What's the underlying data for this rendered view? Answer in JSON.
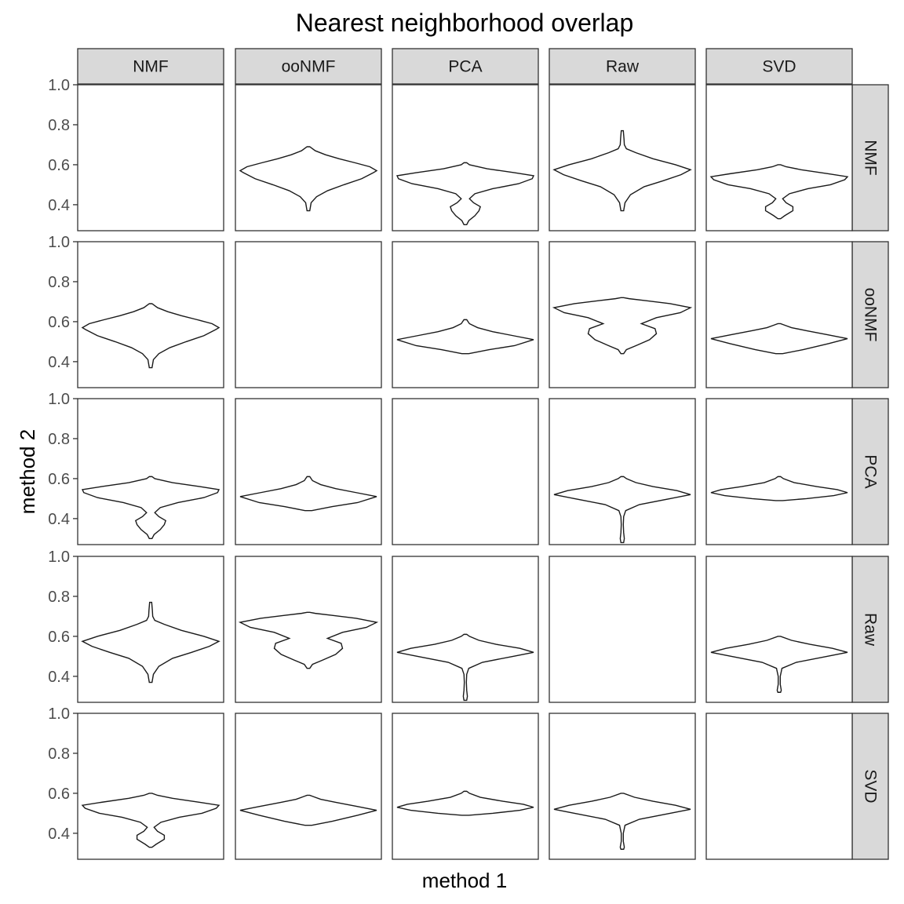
{
  "chart_data": {
    "type": "violin",
    "title": "Nearest neighborhood overlap",
    "xlabel": "method 1",
    "ylabel": "method 2",
    "facet_columns": [
      "NMF",
      "ooNMF",
      "PCA",
      "Raw",
      "SVD"
    ],
    "facet_rows": [
      "NMF",
      "ooNMF",
      "PCA",
      "Raw",
      "SVD"
    ],
    "ylim": [
      0.27,
      1.0
    ],
    "yticks": [
      0.4,
      0.6,
      0.8,
      1.0
    ],
    "ytick_labels": [
      "0.4",
      "0.6",
      "0.8",
      "1.0"
    ],
    "grid": false,
    "panels": [
      {
        "row": "NMF",
        "col": "ooNMF",
        "y_min": 0.37,
        "y_max": 0.69,
        "density": [
          [
            0.37,
            0.02
          ],
          [
            0.41,
            0.04
          ],
          [
            0.44,
            0.12
          ],
          [
            0.47,
            0.28
          ],
          [
            0.5,
            0.52
          ],
          [
            0.53,
            0.78
          ],
          [
            0.56,
            0.95
          ],
          [
            0.57,
            1.0
          ],
          [
            0.59,
            0.9
          ],
          [
            0.61,
            0.68
          ],
          [
            0.63,
            0.45
          ],
          [
            0.65,
            0.25
          ],
          [
            0.67,
            0.1
          ],
          [
            0.69,
            0.02
          ]
        ]
      },
      {
        "row": "NMF",
        "col": "PCA",
        "y_min": 0.3,
        "y_max": 0.61,
        "density": [
          [
            0.3,
            0.02
          ],
          [
            0.32,
            0.05
          ],
          [
            0.345,
            0.14
          ],
          [
            0.37,
            0.2
          ],
          [
            0.39,
            0.22
          ],
          [
            0.41,
            0.12
          ],
          [
            0.43,
            0.06
          ],
          [
            0.455,
            0.14
          ],
          [
            0.48,
            0.4
          ],
          [
            0.505,
            0.78
          ],
          [
            0.53,
            0.98
          ],
          [
            0.545,
            1.0
          ],
          [
            0.56,
            0.72
          ],
          [
            0.58,
            0.32
          ],
          [
            0.6,
            0.06
          ],
          [
            0.61,
            0.02
          ]
        ]
      },
      {
        "row": "NMF",
        "col": "Raw",
        "y_min": 0.37,
        "y_max": 0.77,
        "density": [
          [
            0.37,
            0.02
          ],
          [
            0.41,
            0.04
          ],
          [
            0.45,
            0.12
          ],
          [
            0.49,
            0.32
          ],
          [
            0.52,
            0.6
          ],
          [
            0.55,
            0.86
          ],
          [
            0.575,
            1.0
          ],
          [
            0.6,
            0.78
          ],
          [
            0.63,
            0.45
          ],
          [
            0.66,
            0.2
          ],
          [
            0.68,
            0.06
          ],
          [
            0.7,
            0.03
          ],
          [
            0.73,
            0.025
          ],
          [
            0.77,
            0.015
          ]
        ]
      },
      {
        "row": "NMF",
        "col": "SVD",
        "y_min": 0.33,
        "y_max": 0.6,
        "density": [
          [
            0.33,
            0.02
          ],
          [
            0.345,
            0.08
          ],
          [
            0.37,
            0.2
          ],
          [
            0.39,
            0.2
          ],
          [
            0.41,
            0.1
          ],
          [
            0.43,
            0.05
          ],
          [
            0.455,
            0.15
          ],
          [
            0.48,
            0.42
          ],
          [
            0.5,
            0.75
          ],
          [
            0.525,
            0.96
          ],
          [
            0.54,
            1.0
          ],
          [
            0.555,
            0.72
          ],
          [
            0.575,
            0.32
          ],
          [
            0.59,
            0.1
          ],
          [
            0.6,
            0.02
          ]
        ]
      },
      {
        "row": "ooNMF",
        "col": "NMF",
        "y_min": 0.37,
        "y_max": 0.69,
        "density": [
          [
            0.37,
            0.02
          ],
          [
            0.41,
            0.04
          ],
          [
            0.44,
            0.12
          ],
          [
            0.47,
            0.28
          ],
          [
            0.5,
            0.52
          ],
          [
            0.53,
            0.78
          ],
          [
            0.56,
            0.95
          ],
          [
            0.57,
            1.0
          ],
          [
            0.59,
            0.9
          ],
          [
            0.61,
            0.68
          ],
          [
            0.63,
            0.45
          ],
          [
            0.65,
            0.25
          ],
          [
            0.67,
            0.1
          ],
          [
            0.69,
            0.02
          ]
        ]
      },
      {
        "row": "ooNMF",
        "col": "PCA",
        "y_min": 0.44,
        "y_max": 0.61,
        "density": [
          [
            0.44,
            0.05
          ],
          [
            0.46,
            0.35
          ],
          [
            0.48,
            0.72
          ],
          [
            0.51,
            1.0
          ],
          [
            0.53,
            0.7
          ],
          [
            0.55,
            0.4
          ],
          [
            0.57,
            0.18
          ],
          [
            0.59,
            0.06
          ],
          [
            0.61,
            0.02
          ]
        ]
      },
      {
        "row": "ooNMF",
        "col": "Raw",
        "y_min": 0.44,
        "y_max": 0.72,
        "density": [
          [
            0.44,
            0.02
          ],
          [
            0.46,
            0.06
          ],
          [
            0.48,
            0.2
          ],
          [
            0.51,
            0.4
          ],
          [
            0.54,
            0.5
          ],
          [
            0.565,
            0.48
          ],
          [
            0.59,
            0.28
          ],
          [
            0.62,
            0.5
          ],
          [
            0.645,
            0.85
          ],
          [
            0.67,
            1.0
          ],
          [
            0.69,
            0.7
          ],
          [
            0.705,
            0.35
          ],
          [
            0.715,
            0.1
          ],
          [
            0.72,
            0.02
          ]
        ]
      },
      {
        "row": "ooNMF",
        "col": "SVD",
        "y_min": 0.44,
        "y_max": 0.59,
        "density": [
          [
            0.44,
            0.05
          ],
          [
            0.46,
            0.35
          ],
          [
            0.49,
            0.72
          ],
          [
            0.515,
            1.0
          ],
          [
            0.535,
            0.7
          ],
          [
            0.555,
            0.4
          ],
          [
            0.57,
            0.18
          ],
          [
            0.585,
            0.06
          ],
          [
            0.59,
            0.02
          ]
        ]
      },
      {
        "row": "PCA",
        "col": "NMF",
        "y_min": 0.3,
        "y_max": 0.61,
        "density": [
          [
            0.3,
            0.02
          ],
          [
            0.32,
            0.05
          ],
          [
            0.345,
            0.14
          ],
          [
            0.37,
            0.2
          ],
          [
            0.39,
            0.22
          ],
          [
            0.41,
            0.12
          ],
          [
            0.43,
            0.06
          ],
          [
            0.455,
            0.14
          ],
          [
            0.48,
            0.4
          ],
          [
            0.505,
            0.78
          ],
          [
            0.53,
            0.98
          ],
          [
            0.545,
            1.0
          ],
          [
            0.56,
            0.72
          ],
          [
            0.58,
            0.32
          ],
          [
            0.6,
            0.06
          ],
          [
            0.61,
            0.02
          ]
        ]
      },
      {
        "row": "PCA",
        "col": "ooNMF",
        "y_min": 0.44,
        "y_max": 0.61,
        "density": [
          [
            0.44,
            0.05
          ],
          [
            0.46,
            0.35
          ],
          [
            0.48,
            0.72
          ],
          [
            0.51,
            1.0
          ],
          [
            0.53,
            0.7
          ],
          [
            0.55,
            0.4
          ],
          [
            0.57,
            0.18
          ],
          [
            0.59,
            0.06
          ],
          [
            0.61,
            0.02
          ]
        ]
      },
      {
        "row": "PCA",
        "col": "Raw",
        "y_min": 0.28,
        "y_max": 0.61,
        "density": [
          [
            0.28,
            0.02
          ],
          [
            0.3,
            0.03
          ],
          [
            0.33,
            0.02
          ],
          [
            0.37,
            0.015
          ],
          [
            0.41,
            0.02
          ],
          [
            0.44,
            0.05
          ],
          [
            0.47,
            0.25
          ],
          [
            0.5,
            0.7
          ],
          [
            0.52,
            1.0
          ],
          [
            0.54,
            0.8
          ],
          [
            0.56,
            0.45
          ],
          [
            0.58,
            0.2
          ],
          [
            0.6,
            0.06
          ],
          [
            0.61,
            0.02
          ]
        ]
      },
      {
        "row": "PCA",
        "col": "SVD",
        "y_min": 0.49,
        "y_max": 0.61,
        "density": [
          [
            0.49,
            0.05
          ],
          [
            0.5,
            0.4
          ],
          [
            0.515,
            0.8
          ],
          [
            0.53,
            1.0
          ],
          [
            0.545,
            0.85
          ],
          [
            0.56,
            0.55
          ],
          [
            0.58,
            0.22
          ],
          [
            0.6,
            0.06
          ],
          [
            0.61,
            0.02
          ]
        ]
      },
      {
        "row": "Raw",
        "col": "NMF",
        "y_min": 0.37,
        "y_max": 0.77,
        "density": [
          [
            0.37,
            0.02
          ],
          [
            0.41,
            0.04
          ],
          [
            0.45,
            0.12
          ],
          [
            0.49,
            0.32
          ],
          [
            0.52,
            0.6
          ],
          [
            0.55,
            0.86
          ],
          [
            0.575,
            1.0
          ],
          [
            0.6,
            0.78
          ],
          [
            0.63,
            0.45
          ],
          [
            0.66,
            0.2
          ],
          [
            0.68,
            0.06
          ],
          [
            0.7,
            0.03
          ],
          [
            0.73,
            0.025
          ],
          [
            0.77,
            0.015
          ]
        ]
      },
      {
        "row": "Raw",
        "col": "ooNMF",
        "y_min": 0.44,
        "y_max": 0.72,
        "density": [
          [
            0.44,
            0.02
          ],
          [
            0.46,
            0.06
          ],
          [
            0.48,
            0.2
          ],
          [
            0.51,
            0.4
          ],
          [
            0.54,
            0.5
          ],
          [
            0.565,
            0.48
          ],
          [
            0.59,
            0.28
          ],
          [
            0.62,
            0.5
          ],
          [
            0.645,
            0.85
          ],
          [
            0.67,
            1.0
          ],
          [
            0.69,
            0.7
          ],
          [
            0.705,
            0.35
          ],
          [
            0.715,
            0.1
          ],
          [
            0.72,
            0.02
          ]
        ]
      },
      {
        "row": "Raw",
        "col": "PCA",
        "y_min": 0.28,
        "y_max": 0.61,
        "density": [
          [
            0.28,
            0.02
          ],
          [
            0.3,
            0.03
          ],
          [
            0.33,
            0.02
          ],
          [
            0.37,
            0.015
          ],
          [
            0.41,
            0.02
          ],
          [
            0.44,
            0.05
          ],
          [
            0.47,
            0.25
          ],
          [
            0.5,
            0.7
          ],
          [
            0.52,
            1.0
          ],
          [
            0.54,
            0.8
          ],
          [
            0.56,
            0.45
          ],
          [
            0.58,
            0.2
          ],
          [
            0.6,
            0.06
          ],
          [
            0.61,
            0.02
          ]
        ]
      },
      {
        "row": "Raw",
        "col": "SVD",
        "y_min": 0.32,
        "y_max": 0.6,
        "density": [
          [
            0.32,
            0.02
          ],
          [
            0.33,
            0.03
          ],
          [
            0.36,
            0.015
          ],
          [
            0.4,
            0.015
          ],
          [
            0.44,
            0.04
          ],
          [
            0.47,
            0.25
          ],
          [
            0.5,
            0.7
          ],
          [
            0.52,
            1.0
          ],
          [
            0.54,
            0.78
          ],
          [
            0.56,
            0.45
          ],
          [
            0.58,
            0.18
          ],
          [
            0.6,
            0.02
          ]
        ]
      },
      {
        "row": "SVD",
        "col": "NMF",
        "y_min": 0.33,
        "y_max": 0.6,
        "density": [
          [
            0.33,
            0.02
          ],
          [
            0.345,
            0.08
          ],
          [
            0.37,
            0.2
          ],
          [
            0.39,
            0.2
          ],
          [
            0.41,
            0.1
          ],
          [
            0.43,
            0.05
          ],
          [
            0.455,
            0.15
          ],
          [
            0.48,
            0.42
          ],
          [
            0.5,
            0.75
          ],
          [
            0.525,
            0.96
          ],
          [
            0.54,
            1.0
          ],
          [
            0.555,
            0.72
          ],
          [
            0.575,
            0.32
          ],
          [
            0.59,
            0.1
          ],
          [
            0.6,
            0.02
          ]
        ]
      },
      {
        "row": "SVD",
        "col": "ooNMF",
        "y_min": 0.44,
        "y_max": 0.59,
        "density": [
          [
            0.44,
            0.05
          ],
          [
            0.46,
            0.35
          ],
          [
            0.49,
            0.72
          ],
          [
            0.515,
            1.0
          ],
          [
            0.535,
            0.7
          ],
          [
            0.555,
            0.4
          ],
          [
            0.57,
            0.18
          ],
          [
            0.585,
            0.06
          ],
          [
            0.59,
            0.02
          ]
        ]
      },
      {
        "row": "SVD",
        "col": "PCA",
        "y_min": 0.49,
        "y_max": 0.61,
        "density": [
          [
            0.49,
            0.05
          ],
          [
            0.5,
            0.4
          ],
          [
            0.515,
            0.8
          ],
          [
            0.53,
            1.0
          ],
          [
            0.545,
            0.85
          ],
          [
            0.56,
            0.55
          ],
          [
            0.58,
            0.22
          ],
          [
            0.6,
            0.06
          ],
          [
            0.61,
            0.02
          ]
        ]
      },
      {
        "row": "SVD",
        "col": "Raw",
        "y_min": 0.32,
        "y_max": 0.6,
        "density": [
          [
            0.32,
            0.02
          ],
          [
            0.33,
            0.03
          ],
          [
            0.36,
            0.015
          ],
          [
            0.4,
            0.015
          ],
          [
            0.44,
            0.04
          ],
          [
            0.47,
            0.25
          ],
          [
            0.5,
            0.7
          ],
          [
            0.52,
            1.0
          ],
          [
            0.54,
            0.78
          ],
          [
            0.56,
            0.45
          ],
          [
            0.58,
            0.18
          ],
          [
            0.6,
            0.02
          ]
        ]
      }
    ]
  }
}
